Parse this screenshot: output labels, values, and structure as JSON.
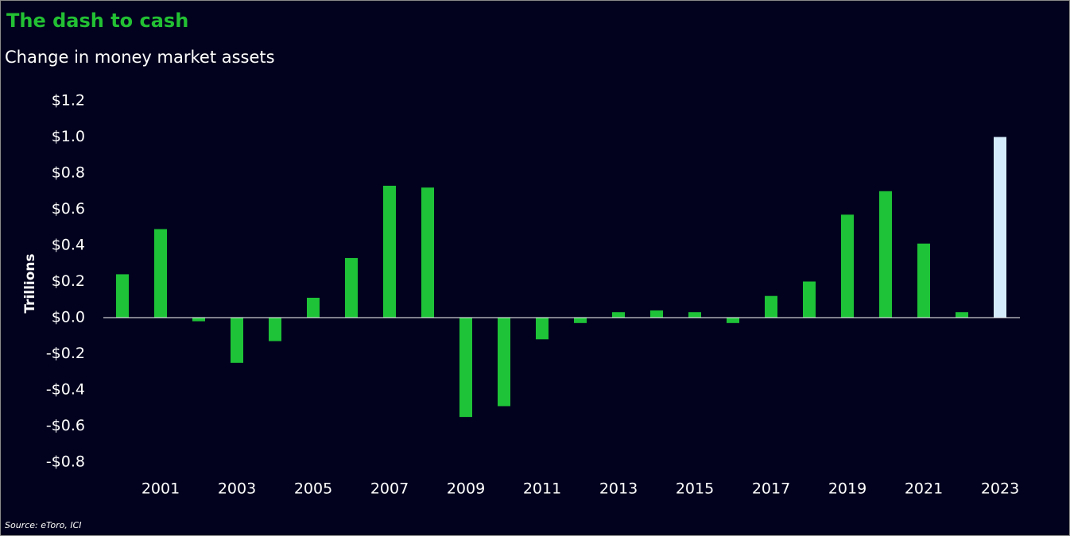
{
  "chart_data": {
    "type": "bar",
    "title": "The dash to cash",
    "subtitle": "Change in money market assets",
    "y_label": "Trillions",
    "source": "Source: eToro, ICI",
    "categories": [
      null,
      "2001",
      null,
      "2003",
      null,
      "2005",
      null,
      "2007",
      null,
      "2009",
      null,
      "2011",
      null,
      "2013",
      null,
      "2015",
      null,
      "2017",
      null,
      "2019",
      null,
      "2021",
      null,
      "2023"
    ],
    "values": [
      0.24,
      0.49,
      -0.02,
      -0.25,
      -0.13,
      0.11,
      0.33,
      0.73,
      0.72,
      -0.55,
      -0.49,
      -0.12,
      -0.03,
      0.03,
      0.04,
      0.03,
      -0.03,
      0.12,
      0.2,
      0.57,
      0.7,
      0.41,
      0.03,
      1.0
    ],
    "colors": [
      "#1ec337",
      "#1ec337",
      "#1ec337",
      "#1ec337",
      "#1ec337",
      "#1ec337",
      "#1ec337",
      "#1ec337",
      "#1ec337",
      "#1ec337",
      "#1ec337",
      "#1ec337",
      "#1ec337",
      "#1ec337",
      "#1ec337",
      "#1ec337",
      "#1ec337",
      "#1ec337",
      "#1ec337",
      "#1ec337",
      "#1ec337",
      "#1ec337",
      "#1ec337",
      "#d4ebfb"
    ],
    "ylim": [
      -0.8,
      1.2
    ],
    "yticks": [
      {
        "value": -0.8,
        "label": "-$0.8"
      },
      {
        "value": -0.6,
        "label": "-$0.6"
      },
      {
        "value": -0.4,
        "label": "-$0.4"
      },
      {
        "value": -0.2,
        "label": "-$0.2"
      },
      {
        "value": 0,
        "label": "$0.0"
      },
      {
        "value": 0.2,
        "label": "$0.2"
      },
      {
        "value": 0.4,
        "label": "$0.4"
      },
      {
        "value": 0.6,
        "label": "$0.6"
      },
      {
        "value": 0.8,
        "label": "$0.8"
      },
      {
        "value": 1.0,
        "label": "$1.0"
      },
      {
        "value": 1.2,
        "label": "$1.2"
      }
    ],
    "grid": false
  }
}
